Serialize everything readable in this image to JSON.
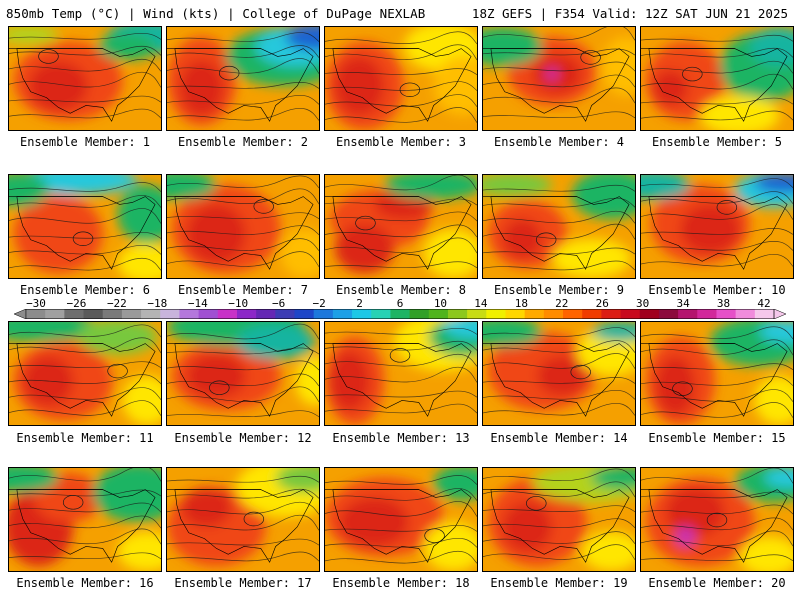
{
  "header": {
    "left": "850mb Temp (°C) | Wind (kts) | College of DuPage NEXLAB",
    "right": "18Z GEFS | F354 Valid: 12Z SAT JUN 21 2025"
  },
  "members": [
    {
      "label": "Ensemble Member: 1"
    },
    {
      "label": "Ensemble Member: 2"
    },
    {
      "label": "Ensemble Member: 3"
    },
    {
      "label": "Ensemble Member: 4"
    },
    {
      "label": "Ensemble Member: 5"
    },
    {
      "label": "Ensemble Member: 6"
    },
    {
      "label": "Ensemble Member: 7"
    },
    {
      "label": "Ensemble Member: 8"
    },
    {
      "label": "Ensemble Member: 9"
    },
    {
      "label": "Ensemble Member: 10"
    },
    {
      "label": "Ensemble Member: 11"
    },
    {
      "label": "Ensemble Member: 12"
    },
    {
      "label": "Ensemble Member: 13"
    },
    {
      "label": "Ensemble Member: 14"
    },
    {
      "label": "Ensemble Member: 15"
    },
    {
      "label": "Ensemble Member: 16"
    },
    {
      "label": "Ensemble Member: 17"
    },
    {
      "label": "Ensemble Member: 18"
    },
    {
      "label": "Ensemble Member: 19"
    },
    {
      "label": "Ensemble Member: 20"
    }
  ],
  "colorbar": {
    "labels": [
      "-30",
      "-26",
      "-22",
      "-18",
      "-14",
      "-10",
      "-6",
      "-2",
      "2",
      "6",
      "10",
      "14",
      "18",
      "22",
      "26",
      "30",
      "34",
      "38",
      "42"
    ],
    "colors": [
      "#8c8c8c",
      "#a0a0a0",
      "#6e6e6e",
      "#5a5a5a",
      "#7a7a7a",
      "#9a9a9a",
      "#b4b4b4",
      "#c8b4dc",
      "#b478dc",
      "#a050d2",
      "#c832c8",
      "#8c28c8",
      "#6428b4",
      "#3c3cb4",
      "#1e46c8",
      "#1e78dc",
      "#1ea0e6",
      "#1ec8e6",
      "#28d2b4",
      "#1eb464",
      "#32a028",
      "#50b41e",
      "#8cc81e",
      "#c8dc14",
      "#f0f000",
      "#ffd700",
      "#ffaa00",
      "#ff8c00",
      "#ff6400",
      "#f03c00",
      "#dc1e14",
      "#c80a1e",
      "#a0001e",
      "#8c0a3c",
      "#b4146e",
      "#d2289b",
      "#e650c8",
      "#f08cdc",
      "#f5c8eb"
    ]
  }
}
